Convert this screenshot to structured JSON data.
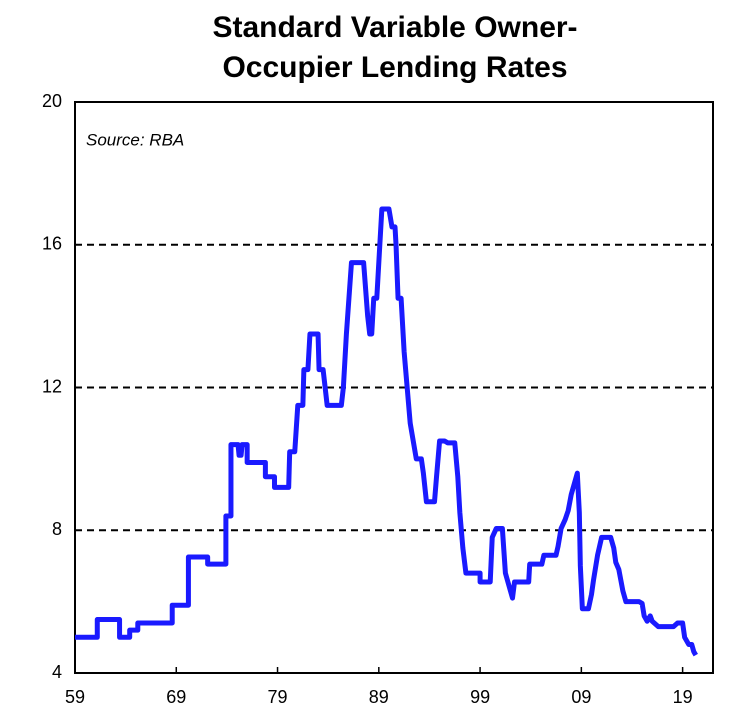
{
  "chart_data": {
    "type": "line",
    "title": "Standard Variable Owner-Occupier Lending Rates",
    "annotation": "Source: RBA",
    "xlim": [
      1959,
      2022
    ],
    "xticks": [
      {
        "value": 1959,
        "label": "59"
      },
      {
        "value": 1969,
        "label": "69"
      },
      {
        "value": 1979,
        "label": "79"
      },
      {
        "value": 1989,
        "label": "89"
      },
      {
        "value": 1999,
        "label": "99"
      },
      {
        "value": 2009,
        "label": "09"
      },
      {
        "value": 2019,
        "label": "19"
      }
    ],
    "ylim": [
      4,
      20
    ],
    "yticks": [
      4,
      8,
      12,
      16,
      20
    ],
    "grid": true,
    "x": [
      1959.0,
      1961.2,
      1961.2,
      1963.4,
      1963.4,
      1964.4,
      1964.4,
      1965.2,
      1965.2,
      1968.6,
      1968.6,
      1970.2,
      1970.2,
      1972.1,
      1972.1,
      1973.9,
      1973.9,
      1974.4,
      1974.4,
      1975.1,
      1975.2,
      1975.4,
      1975.5,
      1976.0,
      1976.0,
      1977.8,
      1977.8,
      1978.7,
      1978.7,
      1980.1,
      1980.2,
      1980.7,
      1981.0,
      1981.5,
      1981.6,
      1982.0,
      1982.2,
      1983.0,
      1983.1,
      1983.5,
      1983.7,
      1983.9,
      1985.3,
      1985.5,
      1985.8,
      1986.3,
      1987.5,
      1987.9,
      1988.1,
      1988.3,
      1988.5,
      1988.8,
      1988.9,
      1989.1,
      1989.3,
      1990.0,
      1990.3,
      1990.6,
      1990.7,
      1990.9,
      1991.2,
      1991.5,
      1992.1,
      1992.7,
      1993.2,
      1993.4,
      1993.7,
      1994.5,
      1994.7,
      1995.0,
      1995.5,
      1995.8,
      1996.5,
      1996.8,
      1997.0,
      1997.3,
      1997.6,
      1999.0,
      1999.0,
      2000.0,
      2000.2,
      2000.6,
      2001.2,
      2001.5,
      2002.0,
      2002.2,
      2002.4,
      2003.8,
      2003.9,
      2005.1,
      2005.3,
      2006.5,
      2006.7,
      2007.0,
      2007.4,
      2007.7,
      2008.0,
      2008.6,
      2008.8,
      2008.9,
      2009.1,
      2009.7,
      2010.0,
      2010.2,
      2010.6,
      2010.8,
      2011.0,
      2011.9,
      2012.2,
      2012.4,
      2012.7,
      2012.9,
      2013.1,
      2013.4,
      2014.7,
      2015.0,
      2015.2,
      2015.5,
      2015.8,
      2016.0,
      2016.6,
      2018.1,
      2018.5,
      2019.0,
      2019.2,
      2019.6,
      2019.9,
      2020.1,
      2020.3
    ],
    "series": [
      {
        "color": "#1a1aff",
        "values": [
          5.0,
          5.0,
          5.5,
          5.5,
          5.0,
          5.0,
          5.2,
          5.2,
          5.4,
          5.4,
          5.9,
          5.9,
          7.25,
          7.25,
          7.05,
          7.05,
          8.4,
          8.4,
          10.4,
          10.4,
          10.1,
          10.1,
          10.4,
          10.4,
          9.9,
          9.9,
          9.5,
          9.5,
          9.2,
          9.2,
          10.2,
          10.2,
          11.5,
          11.5,
          12.5,
          12.5,
          13.5,
          13.5,
          12.5,
          12.5,
          12.0,
          11.5,
          11.5,
          12.0,
          13.5,
          15.5,
          15.5,
          14.0,
          13.5,
          13.5,
          14.5,
          14.5,
          15.0,
          16.0,
          17.0,
          17.0,
          16.5,
          16.5,
          16.0,
          14.5,
          14.5,
          13.0,
          11.0,
          10.0,
          10.0,
          9.6,
          8.8,
          8.8,
          9.5,
          10.5,
          10.5,
          10.45,
          10.45,
          9.5,
          8.5,
          7.5,
          6.8,
          6.8,
          6.55,
          6.55,
          7.8,
          8.05,
          8.05,
          6.8,
          6.3,
          6.1,
          6.55,
          6.55,
          7.05,
          7.05,
          7.3,
          7.3,
          7.55,
          8.05,
          8.3,
          8.55,
          9.0,
          9.6,
          8.5,
          7.0,
          5.8,
          5.8,
          6.2,
          6.6,
          7.3,
          7.55,
          7.8,
          7.8,
          7.5,
          7.1,
          6.9,
          6.6,
          6.3,
          6.0,
          6.0,
          5.95,
          5.6,
          5.45,
          5.6,
          5.45,
          5.3,
          5.3,
          5.4,
          5.4,
          5.0,
          4.8,
          4.8,
          4.6,
          4.5
        ]
      }
    ]
  }
}
